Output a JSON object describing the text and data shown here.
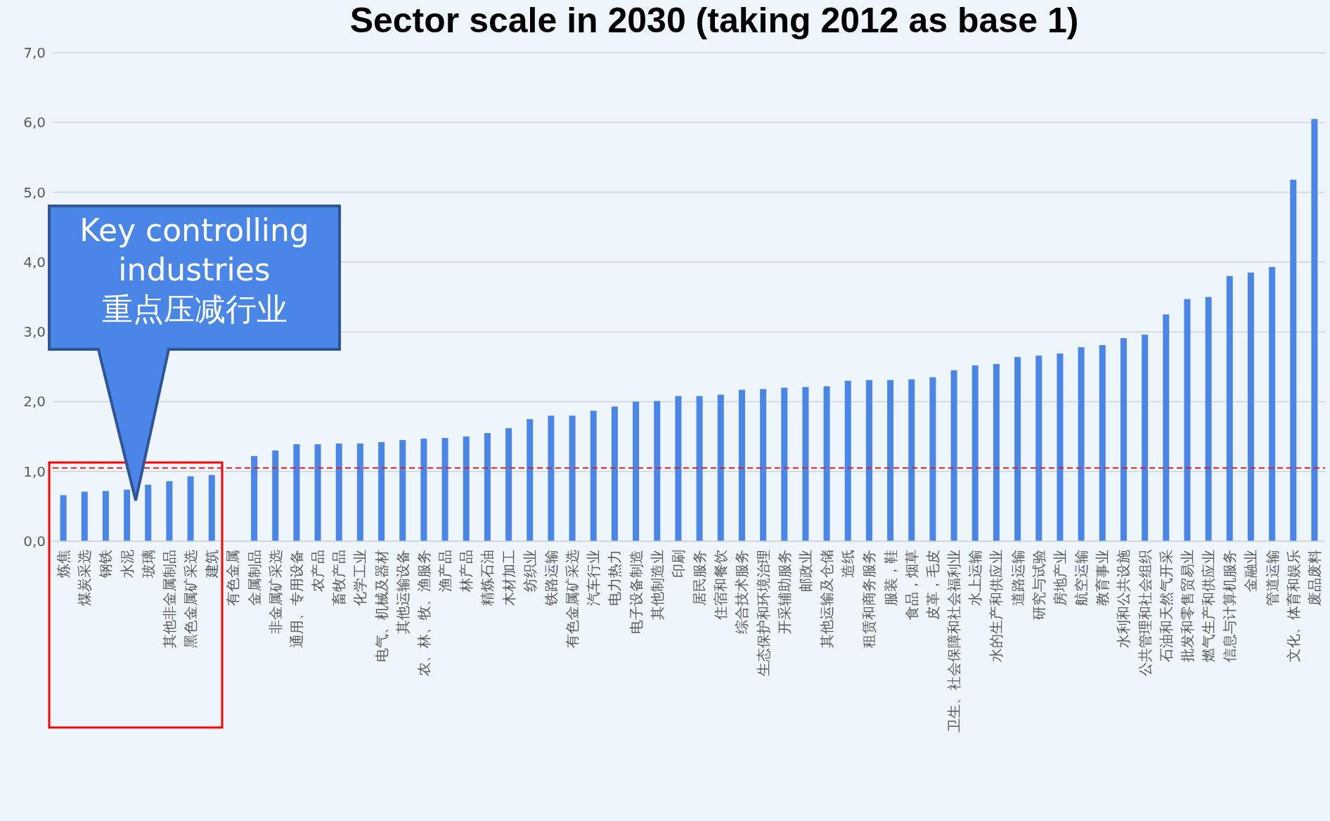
{
  "chart_data": {
    "type": "bar",
    "title": "Sector scale in 2030 (taking 2012 as base 1)",
    "categories": [
      "炼焦",
      "煤炭采选",
      "钢铁",
      "水泥",
      "玻璃",
      "其他非金属制品",
      "黑色金属矿采选",
      "建筑",
      "有色金属",
      "金属制品",
      "非金属矿采选",
      "通用、专用设备",
      "农产品",
      "畜牧产品",
      "化学工业",
      "电气、机械及器材",
      "其他运输设备",
      "农、林、牧、渔服务",
      "渔产品",
      "林产品",
      "精炼石油",
      "木材加工",
      "纺织业",
      "铁路运输",
      "有色金属矿采选",
      "汽车行业",
      "电力热力",
      "电子设备制造",
      "其他制造业",
      "印刷",
      "居民服务",
      "住宿和餐饮",
      "综合技术服务",
      "生态保护和环境治理",
      "开采辅助服务",
      "邮政业",
      "其他运输及仓储",
      "造纸",
      "租赁和商务服务",
      "服装，鞋",
      "食品，烟草",
      "皮革，毛皮",
      "卫生、社会保障和社会福利业",
      "水上运输",
      "水的生产和供应业",
      "道路运输",
      "研究与试验",
      "房地产业",
      "航空运输",
      "教育事业",
      "水利和公共设施",
      "公共管理和社会组织",
      "石油和天然气开采",
      "批发和零售贸易业",
      "燃气生产和供应业",
      "信息与计算机服务",
      "金融业",
      "管道运输",
      "文化、体育和娱乐",
      "废品废料"
    ],
    "values": [
      0.66,
      0.71,
      0.72,
      0.74,
      0.81,
      0.86,
      0.93,
      0.95,
      null,
      1.22,
      1.3,
      1.39,
      1.39,
      1.4,
      1.4,
      1.42,
      1.45,
      1.47,
      1.48,
      1.5,
      1.55,
      1.62,
      1.75,
      1.8,
      1.8,
      1.87,
      1.93,
      2.0,
      2.01,
      2.08,
      2.08,
      2.1,
      2.17,
      2.18,
      2.2,
      2.21,
      2.22,
      2.3,
      2.31,
      2.31,
      2.32,
      2.35,
      2.45,
      2.52,
      2.54,
      2.64,
      2.66,
      2.69,
      2.78,
      2.81,
      2.91,
      2.96,
      3.25,
      3.47,
      3.5,
      3.8,
      3.85,
      3.93,
      5.18,
      6.05
    ],
    "color": "#4a86e8",
    "ylim": [
      0,
      7
    ],
    "yticks": [
      {
        "value": 0,
        "label": "0,0"
      },
      {
        "value": 1,
        "label": "1,0"
      },
      {
        "value": 2,
        "label": "2,0"
      },
      {
        "value": 3,
        "label": "3,0"
      },
      {
        "value": 4,
        "label": "4,0"
      },
      {
        "value": 5,
        "label": "5,0"
      },
      {
        "value": 6,
        "label": "6,0"
      },
      {
        "value": 7,
        "label": "7,0"
      }
    ],
    "grid": "y",
    "ref_lines": [
      {
        "axis": "y",
        "value": 1.05,
        "color": "#e02020",
        "line_style": "dashed"
      }
    ],
    "annotations": [
      "Key controlling industries",
      "重点压减行业"
    ]
  }
}
